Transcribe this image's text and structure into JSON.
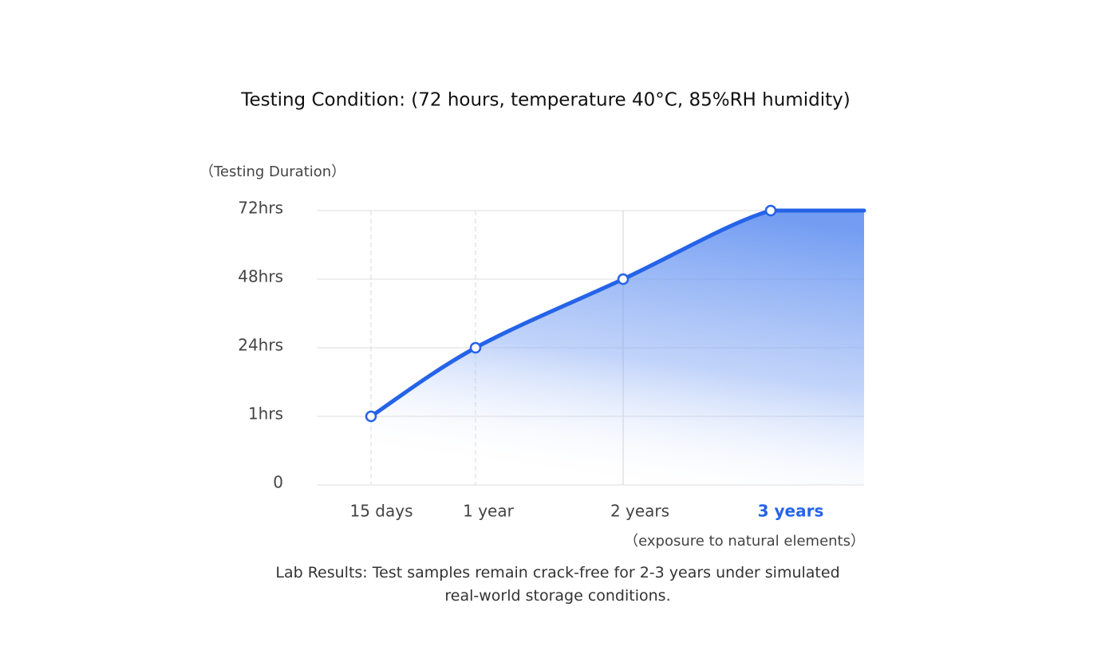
{
  "chart_data": {
    "type": "line",
    "title": "Testing Condition: (72 hours, temperature 40°C, 85%RH humidity)",
    "y_label": "（Testing Duration）",
    "x_label": "（exposure to natural elements）",
    "caption": "Lab Results: Test samples remain crack-free for 2-3 years under simulated real-world storage conditions.",
    "categories": [
      "15 days",
      "1 year",
      "2 years",
      "3 years"
    ],
    "highlight_index": 3,
    "series": [
      {
        "name": "Testing Duration",
        "color": "#2563e8",
        "values": [
          1,
          24,
          48,
          72
        ]
      }
    ],
    "ylim": [
      0,
      72
    ],
    "yticks": [
      0,
      {
        "value": 1,
        "label": "1hrs"
      },
      {
        "value": 24,
        "label": "24hrs"
      },
      {
        "value": 48,
        "label": "48hrs"
      },
      {
        "value": 72,
        "label": "72hrs"
      }
    ],
    "grid": true
  }
}
